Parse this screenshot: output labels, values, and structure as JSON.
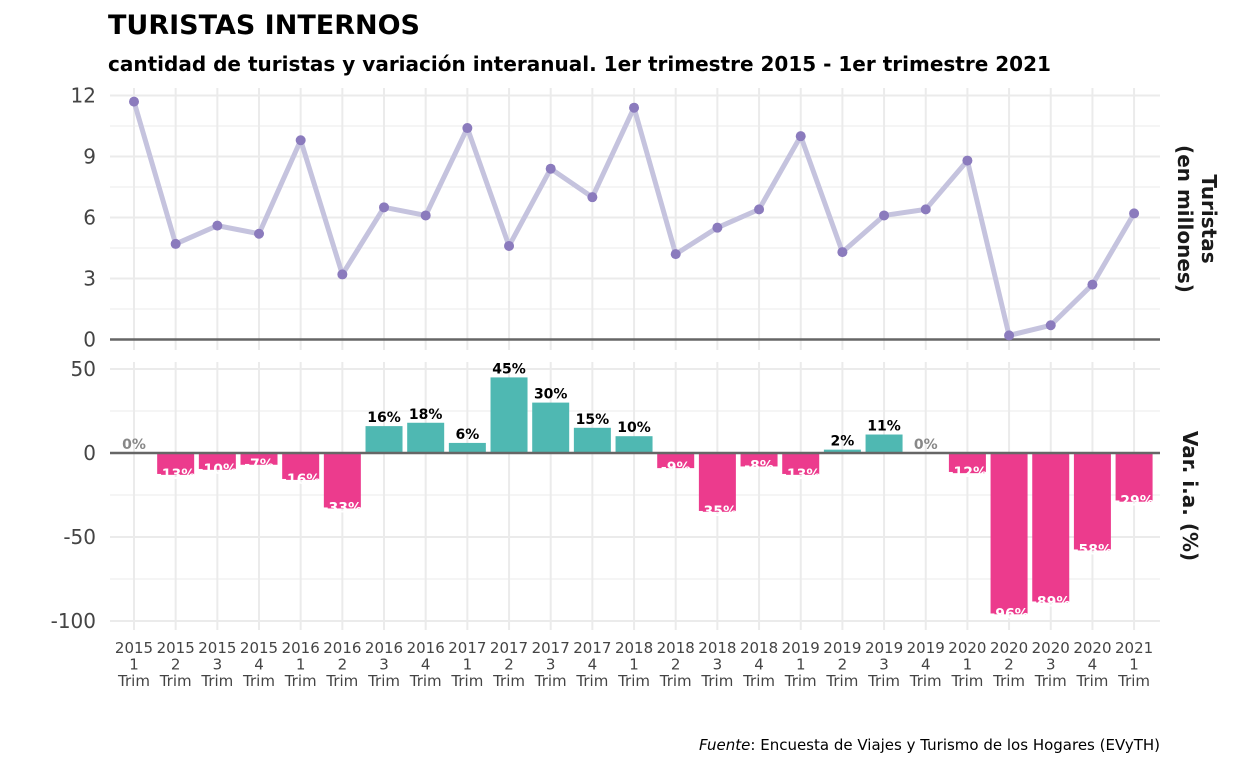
{
  "title": "TURISTAS INTERNOS",
  "subtitle": "cantidad de turistas y variación interanual. 1er trimestre 2015 - 1er trimestre 2021",
  "source": {
    "label": "Fuente",
    "text": ": Encuesta de Viajes y Turismo de los Hogares (EVyTH)"
  },
  "colors": {
    "line": "#c5c3de",
    "point": "#8b7bbd",
    "positive": "#4fb8b2",
    "negative": "#ec3b8d",
    "zero_label": "#888888",
    "grid": "#ebebeb",
    "baseline": "#666666"
  },
  "chart_data": [
    {
      "type": "line",
      "panel_label": [
        "Turistas",
        "(en millones)"
      ],
      "x": [
        [
          "2015",
          "1",
          "Trim"
        ],
        [
          "2015",
          "2",
          "Trim"
        ],
        [
          "2015",
          "3",
          "Trim"
        ],
        [
          "2015",
          "4",
          "Trim"
        ],
        [
          "2016",
          "1",
          "Trim"
        ],
        [
          "2016",
          "2",
          "Trim"
        ],
        [
          "2016",
          "3",
          "Trim"
        ],
        [
          "2016",
          "4",
          "Trim"
        ],
        [
          "2017",
          "1",
          "Trim"
        ],
        [
          "2017",
          "2",
          "Trim"
        ],
        [
          "2017",
          "3",
          "Trim"
        ],
        [
          "2017",
          "4",
          "Trim"
        ],
        [
          "2018",
          "1",
          "Trim"
        ],
        [
          "2018",
          "2",
          "Trim"
        ],
        [
          "2018",
          "3",
          "Trim"
        ],
        [
          "2018",
          "4",
          "Trim"
        ],
        [
          "2019",
          "1",
          "Trim"
        ],
        [
          "2019",
          "2",
          "Trim"
        ],
        [
          "2019",
          "3",
          "Trim"
        ],
        [
          "2019",
          "4",
          "Trim"
        ],
        [
          "2020",
          "1",
          "Trim"
        ],
        [
          "2020",
          "2",
          "Trim"
        ],
        [
          "2020",
          "3",
          "Trim"
        ],
        [
          "2020",
          "4",
          "Trim"
        ],
        [
          "2021",
          "1",
          "Trim"
        ]
      ],
      "values": [
        11.7,
        4.7,
        5.6,
        5.2,
        9.8,
        3.2,
        6.5,
        6.1,
        10.4,
        4.6,
        8.4,
        7.0,
        11.4,
        4.2,
        5.5,
        6.4,
        10.0,
        4.3,
        6.1,
        6.4,
        8.8,
        0.2,
        0.7,
        2.7,
        6.2
      ],
      "yticks": [
        "0",
        "3",
        "6",
        "9",
        "12"
      ],
      "ylim": [
        0,
        12.2
      ]
    },
    {
      "type": "bar",
      "panel_label": "Var. i.a. (%)",
      "values": [
        0,
        -13,
        -10,
        -7,
        -16,
        -33,
        16,
        18,
        6,
        45,
        30,
        15,
        10,
        -9,
        -35,
        -8,
        -13,
        2,
        11,
        0,
        -12,
        -96,
        -89,
        -58,
        -29
      ],
      "labels": [
        "0%",
        "-13%",
        "-10%",
        "-7%",
        "-16%",
        "-33%",
        "16%",
        "18%",
        "6%",
        "45%",
        "30%",
        "15%",
        "10%",
        "-9%",
        "-35%",
        "-8%",
        "-13%",
        "2%",
        "11%",
        "0%",
        "-12%",
        "-96%",
        "-89%",
        "-58%",
        "-29%"
      ],
      "yticks": [
        "-100",
        "-50",
        "0",
        "50"
      ],
      "ylim": [
        -100,
        50
      ]
    }
  ]
}
